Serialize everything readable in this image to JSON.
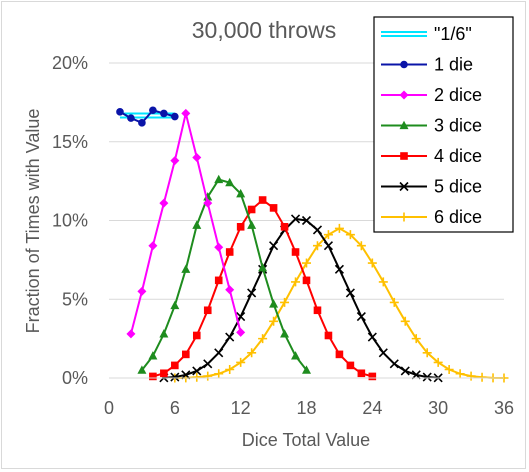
{
  "chart_data": {
    "type": "line",
    "title": "30,000 throws",
    "xlabel": "Dice Total Value",
    "ylabel": "Fraction of Times with Value",
    "xlim": [
      0,
      36
    ],
    "ylim": [
      0,
      0.2
    ],
    "x_ticks": [
      0,
      6,
      12,
      18,
      24,
      30,
      36
    ],
    "x_tick_labels": [
      "0",
      "6",
      "12",
      "18",
      "24",
      "30",
      "36"
    ],
    "y_ticks": [
      0,
      0.05,
      0.1,
      0.15,
      0.2
    ],
    "y_tick_labels": [
      "0%",
      "5%",
      "10%",
      "15%",
      "20%"
    ],
    "grid": "horizontal",
    "legend_position": "top-right",
    "series": [
      {
        "name": "\"1/6\"",
        "color": "#00e5ff",
        "marker": "none",
        "style": "double-line",
        "x": [
          1,
          6
        ],
        "values": [
          0.1667,
          0.1667
        ]
      },
      {
        "name": "1 die",
        "color": "#0a14a8",
        "marker": "circle",
        "x": [
          1,
          2,
          3,
          4,
          5,
          6
        ],
        "values": [
          0.169,
          0.165,
          0.162,
          0.17,
          0.168,
          0.166
        ]
      },
      {
        "name": "2 dice",
        "color": "#ff00ff",
        "marker": "diamond",
        "x": [
          2,
          3,
          4,
          5,
          6,
          7,
          8,
          9,
          10,
          11,
          12
        ],
        "values": [
          0.028,
          0.055,
          0.084,
          0.111,
          0.138,
          0.168,
          0.14,
          0.111,
          0.083,
          0.056,
          0.029
        ]
      },
      {
        "name": "3 dice",
        "color": "#1e8c1e",
        "marker": "triangle",
        "x": [
          3,
          4,
          5,
          6,
          7,
          8,
          9,
          10,
          11,
          12,
          13,
          14,
          15,
          16,
          17,
          18
        ],
        "values": [
          0.005,
          0.014,
          0.028,
          0.046,
          0.069,
          0.097,
          0.115,
          0.126,
          0.124,
          0.117,
          0.097,
          0.07,
          0.047,
          0.028,
          0.014,
          0.005
        ]
      },
      {
        "name": "4 dice",
        "color": "#ff0000",
        "marker": "square",
        "x": [
          4,
          5,
          6,
          7,
          8,
          9,
          10,
          11,
          12,
          13,
          14,
          15,
          16,
          17,
          18,
          19,
          20,
          21,
          22,
          23,
          24
        ],
        "values": [
          0.001,
          0.003,
          0.008,
          0.015,
          0.027,
          0.043,
          0.062,
          0.08,
          0.096,
          0.107,
          0.113,
          0.108,
          0.096,
          0.08,
          0.062,
          0.043,
          0.027,
          0.015,
          0.008,
          0.003,
          0.001
        ]
      },
      {
        "name": "5 dice",
        "color": "#000000",
        "marker": "x",
        "x": [
          5,
          6,
          7,
          8,
          9,
          10,
          11,
          12,
          13,
          14,
          15,
          16,
          17,
          18,
          19,
          20,
          21,
          22,
          23,
          24,
          25,
          26,
          27,
          28,
          29,
          30
        ],
        "values": [
          0.0001,
          0.0006,
          0.002,
          0.0045,
          0.009,
          0.016,
          0.026,
          0.039,
          0.054,
          0.069,
          0.084,
          0.094,
          0.101,
          0.1,
          0.094,
          0.084,
          0.069,
          0.054,
          0.039,
          0.026,
          0.016,
          0.009,
          0.0045,
          0.002,
          0.0006,
          0.0001
        ]
      },
      {
        "name": "6 dice",
        "color": "#ffc000",
        "marker": "plus",
        "x": [
          6,
          7,
          8,
          9,
          10,
          11,
          12,
          13,
          14,
          15,
          16,
          17,
          18,
          19,
          20,
          21,
          22,
          23,
          24,
          25,
          26,
          27,
          28,
          29,
          30,
          31,
          32,
          33,
          34,
          35,
          36
        ],
        "values": [
          0.0,
          0.0001,
          0.0005,
          0.0012,
          0.0027,
          0.0054,
          0.0099,
          0.016,
          0.025,
          0.036,
          0.048,
          0.061,
          0.073,
          0.084,
          0.091,
          0.095,
          0.091,
          0.084,
          0.073,
          0.061,
          0.048,
          0.036,
          0.025,
          0.016,
          0.0099,
          0.0054,
          0.0027,
          0.0012,
          0.0005,
          0.0001,
          0.0
        ]
      }
    ]
  }
}
